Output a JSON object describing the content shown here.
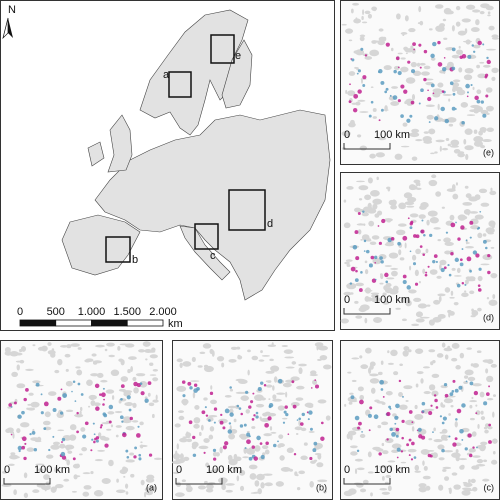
{
  "main_map": {
    "north_label": "N",
    "scale_ticks": [
      "0",
      "500",
      "1.000",
      "1.500",
      "2.000"
    ],
    "scale_unit": "km",
    "boxes": [
      "a",
      "b",
      "c",
      "d",
      "e"
    ]
  },
  "insets": [
    {
      "label": "(e)",
      "scale_start": "0",
      "scale_end": "100 km"
    },
    {
      "label": "(d)",
      "scale_start": "0",
      "scale_end": "100 km"
    },
    {
      "label": "(a)",
      "scale_start": "0",
      "scale_end": "100 km"
    },
    {
      "label": "(b)",
      "scale_start": "0",
      "scale_end": "100 km"
    },
    {
      "label": "(c)",
      "scale_start": "0",
      "scale_end": "100 km"
    }
  ]
}
